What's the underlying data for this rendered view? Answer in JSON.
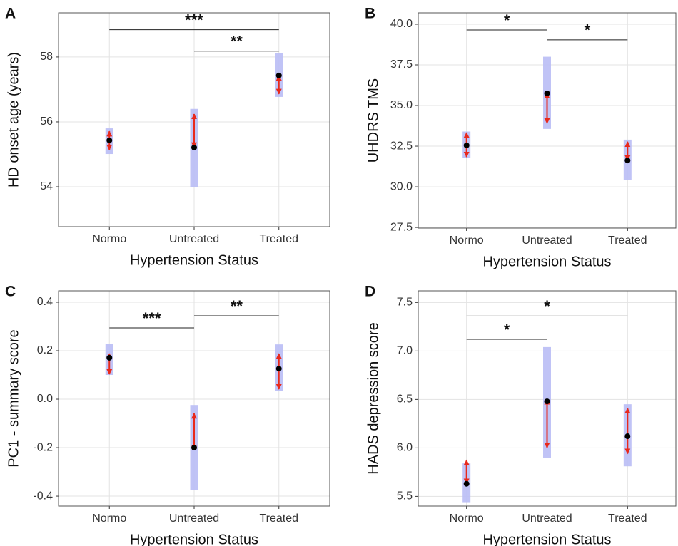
{
  "chart_data": [
    {
      "type": "pointrange",
      "panel_label": "A",
      "ylabel": "HD onset age (years)",
      "xlabel": "Hypertension Status",
      "categories": [
        "Normo",
        "Untreated",
        "Treated"
      ],
      "values": [
        55.43,
        55.21,
        57.43
      ],
      "ci_lower": [
        55.01,
        54.0,
        56.77
      ],
      "ci_upper": [
        55.8,
        56.4,
        58.11
      ],
      "arrow_lower": [
        55.14,
        55.21,
        56.86
      ],
      "arrow_upper": [
        55.71,
        56.24,
        57.43
      ],
      "ci_color": "#b9bcf5",
      "arrow_color": "#e8291c",
      "point_color": "#000000",
      "ylim": [
        52.77,
        59.36
      ],
      "yticks": [
        54,
        56,
        58
      ],
      "grid": true,
      "significance": [
        {
          "start": 0,
          "end": 2,
          "y": 58.84,
          "label": "***"
        },
        {
          "start": 1,
          "end": 2,
          "y": 58.18,
          "label": "**"
        }
      ]
    },
    {
      "type": "pointrange",
      "panel_label": "B",
      "ylabel": "UHDRS TMS",
      "xlabel": "Hypertension Status",
      "categories": [
        "Normo",
        "Untreated",
        "Treated"
      ],
      "values": [
        32.55,
        35.75,
        31.62
      ],
      "ci_lower": [
        31.8,
        33.56,
        30.4
      ],
      "ci_upper": [
        33.4,
        38.0,
        32.9
      ],
      "arrow_lower": [
        31.84,
        33.9,
        31.62
      ],
      "arrow_upper": [
        33.33,
        35.75,
        32.77
      ],
      "ci_color": "#b9bcf5",
      "arrow_color": "#e8291c",
      "point_color": "#000000",
      "ylim": [
        27.46,
        40.7
      ],
      "yticks": [
        27.5,
        {
          "value": 30,
          "label": "30.0"
        },
        32.5,
        {
          "value": 35,
          "label": "35.0"
        },
        37.5,
        {
          "value": 40,
          "label": "40.0"
        }
      ],
      "grid": true,
      "significance": [
        {
          "start": 0,
          "end": 1,
          "y": 39.65,
          "label": "*"
        },
        {
          "start": 1,
          "end": 2,
          "y": 39.04,
          "label": "*"
        }
      ]
    },
    {
      "type": "pointrange",
      "panel_label": "C",
      "ylabel": "PC1 - summary score",
      "xlabel": "Hypertension Status",
      "categories": [
        "Normo",
        "Untreated",
        "Treated"
      ],
      "values": [
        0.171,
        -0.2,
        0.126
      ],
      "ci_lower": [
        0.1,
        -0.374,
        0.035
      ],
      "ci_upper": [
        0.229,
        -0.024,
        0.226
      ],
      "arrow_lower": [
        0.103,
        -0.21,
        0.041
      ],
      "arrow_upper": [
        0.188,
        -0.059,
        0.188
      ],
      "ci_color": "#b9bcf5",
      "arrow_color": "#e8291c",
      "point_color": "#000000",
      "ylim": [
        -0.441,
        0.447
      ],
      "yticks": [
        -0.4,
        -0.2,
        {
          "value": 0,
          "label": "0.0"
        },
        0.2,
        0.4
      ],
      "grid": true,
      "significance": [
        {
          "start": 0,
          "end": 1,
          "y": 0.294,
          "label": "***"
        },
        {
          "start": 1,
          "end": 2,
          "y": 0.344,
          "label": "**"
        }
      ]
    },
    {
      "type": "pointrange",
      "panel_label": "D",
      "ylabel": "HADS depression score",
      "xlabel": "Hypertension Status",
      "categories": [
        "Normo",
        "Untreated",
        "Treated"
      ],
      "values": [
        5.63,
        6.48,
        6.12
      ],
      "ci_lower": [
        5.44,
        5.9,
        5.81
      ],
      "ci_upper": [
        5.84,
        7.04,
        6.45
      ],
      "arrow_lower": [
        5.63,
        6.0,
        5.94
      ],
      "arrow_upper": [
        5.875,
        6.5,
        6.41
      ],
      "ci_color": "#b9bcf5",
      "arrow_color": "#e8291c",
      "point_color": "#000000",
      "ylim": [
        5.4,
        7.62
      ],
      "yticks": [
        5.5,
        {
          "value": 6,
          "label": "6.0"
        },
        6.5,
        {
          "value": 7,
          "label": "7.0"
        },
        7.5
      ],
      "grid": true,
      "significance": [
        {
          "start": 0,
          "end": 2,
          "y": 7.36,
          "label": "*"
        },
        {
          "start": 0,
          "end": 1,
          "y": 7.12,
          "label": "*"
        }
      ]
    }
  ]
}
